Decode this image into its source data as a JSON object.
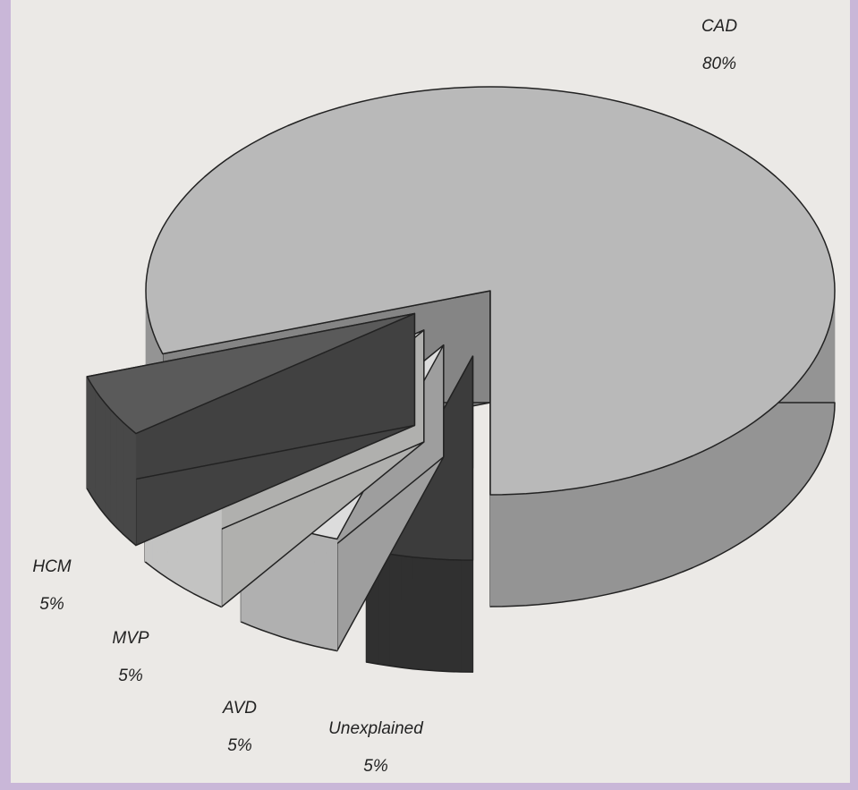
{
  "chart_data": {
    "type": "pie",
    "categories": [
      "CAD",
      "HCM",
      "MVP",
      "AVD",
      "Unexplained"
    ],
    "values": [
      80,
      5,
      5,
      5,
      5
    ],
    "value_labels": [
      "80%",
      "5%",
      "5%",
      "5%",
      "5%"
    ],
    "colors": [
      "#b9b9b9",
      "#3c3c3c",
      "#dcdcdc",
      "#f4f4f2",
      "#5a5a5a"
    ]
  }
}
